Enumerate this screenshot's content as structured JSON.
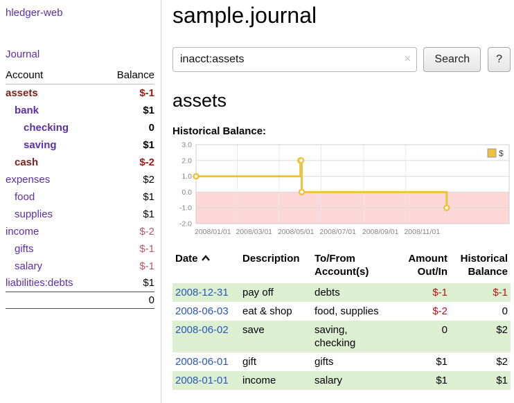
{
  "app": {
    "title": "hledger-web"
  },
  "sidebar": {
    "journal_link": "Journal",
    "headers": {
      "account": "Account",
      "balance": "Balance"
    },
    "accounts": [
      {
        "name": "assets",
        "balance": "$-1"
      },
      {
        "name": "bank",
        "balance": "$1"
      },
      {
        "name": "checking",
        "balance": "0"
      },
      {
        "name": "saving",
        "balance": "$1"
      },
      {
        "name": "cash",
        "balance": "$-2"
      },
      {
        "name": "expenses",
        "balance": "$2"
      },
      {
        "name": "food",
        "balance": "$1"
      },
      {
        "name": "supplies",
        "balance": "$1"
      },
      {
        "name": "income",
        "balance": "$-2"
      },
      {
        "name": "gifts",
        "balance": "$-1"
      },
      {
        "name": "salary",
        "balance": "$-1"
      },
      {
        "name": "liabilities:debts",
        "balance": "$1"
      }
    ],
    "total": "0"
  },
  "main": {
    "title": "sample.journal",
    "search": {
      "value": "inacct:assets",
      "clear_icon": "×",
      "button_label": "Search",
      "help_label": "?"
    },
    "account_heading": "assets",
    "chart_title": "Historical Balance:",
    "chart_data": {
      "type": "line",
      "title": "Historical Balance",
      "step": true,
      "line_color": "#edc240",
      "negative_region_color": "#fbd7d7",
      "grid": true,
      "legend_position": "top-right",
      "legend": [
        {
          "label": "$",
          "color": "#edc240"
        }
      ],
      "ylim": [
        -2.0,
        3.0
      ],
      "yticks": [
        3.0,
        2.0,
        1.0,
        0.0,
        -1.0,
        -2.0
      ],
      "xrange": [
        "2008-01-01",
        "2009-04-01"
      ],
      "xticks": [
        {
          "date": "2008-01-01",
          "label": "2008/01/01"
        },
        {
          "date": "2008-03-01",
          "label": "2008/03/01"
        },
        {
          "date": "2008-05-01",
          "label": "2008/05/01"
        },
        {
          "date": "2008-07-01",
          "label": "2008/07/01"
        },
        {
          "date": "2008-09-01",
          "label": "2008/09/01"
        },
        {
          "date": "2008-11-01",
          "label": "2008/11/01"
        }
      ],
      "series": [
        {
          "name": "$",
          "color": "#edc240",
          "points": [
            {
              "date": "2008-01-01",
              "value": 1
            },
            {
              "date": "2008-06-01",
              "value": 2
            },
            {
              "date": "2008-06-02",
              "value": 2
            },
            {
              "date": "2008-06-03",
              "value": 0
            },
            {
              "date": "2008-12-31",
              "value": -1
            }
          ]
        }
      ]
    },
    "register": {
      "sort": {
        "column": "date",
        "direction": "ascending"
      },
      "headers": {
        "date": "Date",
        "description": "Description",
        "account": "To/From Account(s)",
        "amount": "Amount Out/In",
        "balance": "Historical Balance"
      },
      "rows": [
        {
          "date": "2008-12-31",
          "description": "pay off",
          "account": "debts",
          "amount": "$-1",
          "balance": "$-1"
        },
        {
          "date": "2008-06-03",
          "description": "eat & shop",
          "account": "food, supplies",
          "amount": "$-2",
          "balance": "0"
        },
        {
          "date": "2008-06-02",
          "description": "save",
          "account": "saving, checking",
          "amount": "0",
          "balance": "$2"
        },
        {
          "date": "2008-06-01",
          "description": "gift",
          "account": "gifts",
          "amount": "$1",
          "balance": "$2"
        },
        {
          "date": "2008-01-01",
          "description": "income",
          "account": "salary",
          "amount": "$1",
          "balance": "$1"
        }
      ]
    }
  }
}
